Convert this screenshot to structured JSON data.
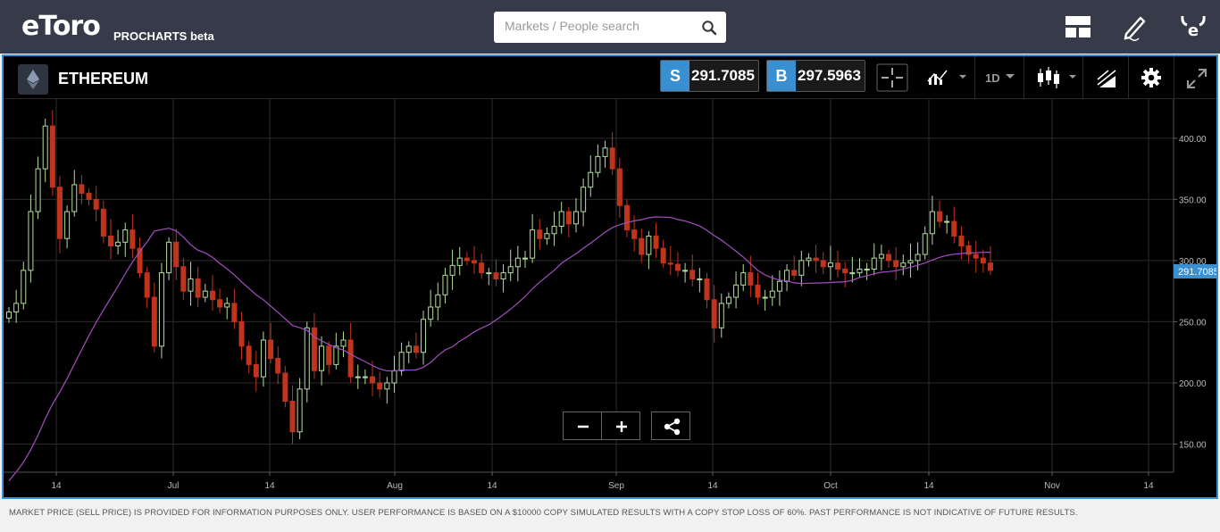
{
  "app": {
    "logo_text": "eToro",
    "logo_subtitle": "PROCHARTS beta",
    "search_placeholder": "Markets / People search"
  },
  "header": {
    "asset_name": "ETHEREUM",
    "sell_label": "S",
    "sell_price": "291.7085",
    "buy_label": "B",
    "buy_price": "297.5963",
    "timeframe": "1D"
  },
  "colors": {
    "topbar": "#373b49",
    "accent": "#3a8fd1",
    "up_candle": "#b5dca0",
    "down_candle": "#c0341d",
    "moving_average": "#a24fc1"
  },
  "icons": [
    "search-icon",
    "layout-icon",
    "pencil-icon",
    "etoro-bull-icon",
    "crosshair-icon",
    "line-chart-icon",
    "candlestick-icon",
    "drawing-tools-icon",
    "gear-icon",
    "fullscreen-icon",
    "minus-icon",
    "plus-icon",
    "share-icon"
  ],
  "footer": {
    "disclaimer": "MARKET PRICE (SELL PRICE) IS PROVIDED FOR INFORMATION PURPOSES ONLY. USER PERFORMANCE IS BASED ON A $10000 COPY SIMULATED RESULTS WITH A COPY STOP LOSS OF 60%. PAST PERFORMANCE IS NOT INDICATIVE OF FUTURE RESULTS."
  },
  "chart_data": {
    "type": "candlestick",
    "title": "ETHEREUM",
    "y_axis": {
      "ticks": [
        "150.00",
        "200.00",
        "250.00",
        "300.00",
        "350.00",
        "400.00"
      ],
      "ylim": [
        127,
        432
      ]
    },
    "x_axis": {
      "ticks": [
        "14",
        "Jul",
        "14",
        "Aug",
        "14",
        "Sep",
        "14",
        "Oct",
        "14",
        "Nov",
        "14"
      ]
    },
    "current_price_label": "291.7085",
    "grid": true,
    "candle_closes": [
      258,
      265,
      292,
      340,
      375,
      410,
      360,
      318,
      340,
      362,
      355,
      350,
      342,
      320,
      312,
      315,
      325,
      310,
      290,
      270,
      230,
      290,
      315,
      295,
      275,
      285,
      270,
      275,
      268,
      262,
      265,
      250,
      230,
      215,
      205,
      235,
      220,
      208,
      185,
      160,
      195,
      245,
      210,
      230,
      215,
      230,
      235,
      205,
      205,
      205,
      200,
      195,
      200,
      210,
      225,
      230,
      225,
      252,
      262,
      272,
      288,
      296,
      302,
      300,
      298,
      290,
      290,
      285,
      290,
      295,
      302,
      302,
      325,
      318,
      322,
      328,
      340,
      330,
      340,
      360,
      372,
      385,
      392,
      375,
      345,
      325,
      318,
      305,
      320,
      310,
      298,
      297,
      292,
      292,
      285,
      285,
      268,
      245,
      265,
      270,
      280,
      290,
      280,
      270,
      270,
      275,
      283,
      292,
      288,
      300,
      302,
      300,
      295,
      298,
      293,
      290,
      290,
      293,
      293,
      302,
      305,
      300,
      295,
      298,
      300,
      305,
      322,
      340,
      332,
      332,
      320,
      312,
      305,
      302,
      298,
      292
    ]
  }
}
